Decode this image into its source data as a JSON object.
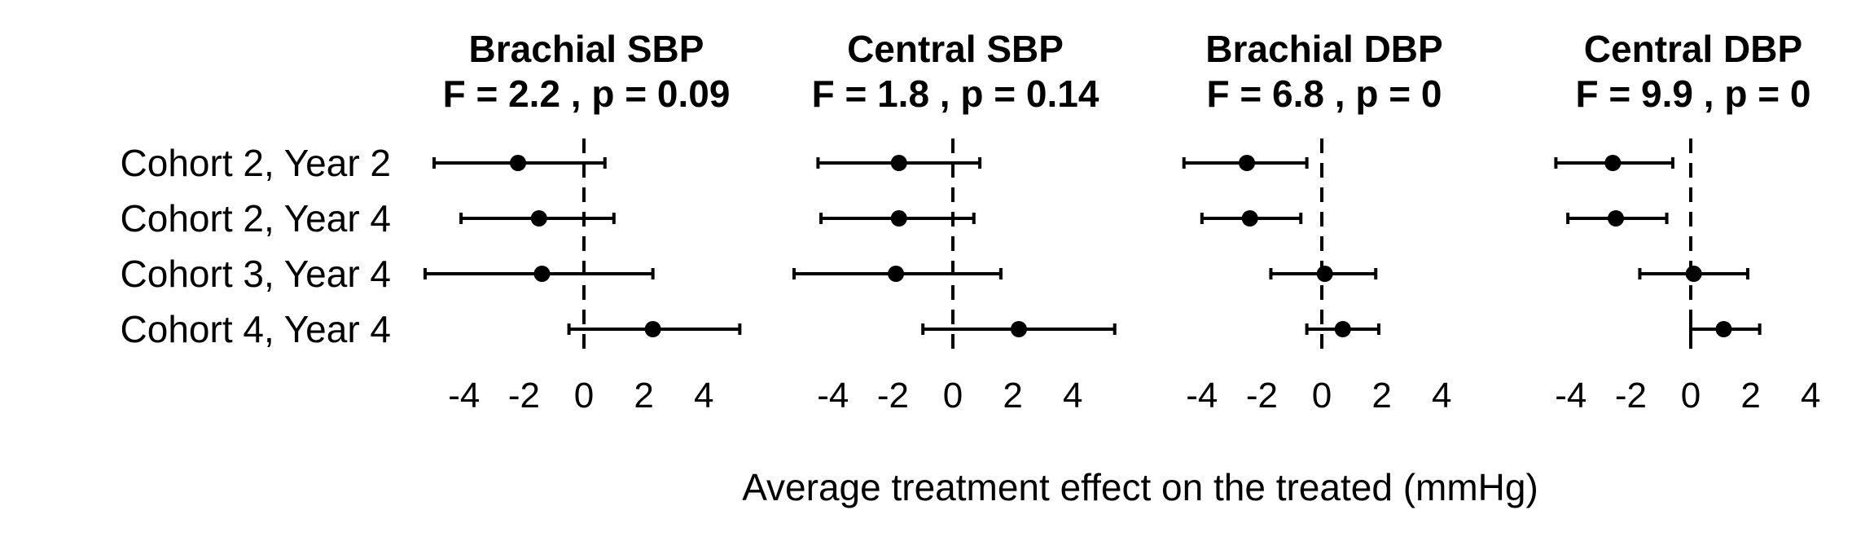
{
  "chart_data": {
    "type": "forest",
    "xlabel": "Average treatment effect on the treated (mmHg)",
    "rows": [
      "Cohort 2, Year 2",
      "Cohort 2, Year 4",
      "Cohort 3, Year 4",
      "Cohort 4, Year 4"
    ],
    "xticks": [
      -4,
      -2,
      0,
      2,
      4
    ],
    "tick_labels": [
      "-4",
      "-2",
      "0",
      "2",
      "4"
    ],
    "reference_line": 0,
    "panels": [
      {
        "title": "Brachial SBP",
        "stat": "F = 2.2 , p = 0.09",
        "estimates": [
          -2.2,
          -1.5,
          -1.4,
          2.3
        ],
        "lower": [
          -5.0,
          -4.1,
          -5.3,
          -0.5
        ],
        "upper": [
          0.7,
          1.0,
          2.3,
          5.2
        ]
      },
      {
        "title": "Central SBP",
        "stat": "F = 1.8 , p = 0.14",
        "estimates": [
          -1.8,
          -1.8,
          -1.9,
          2.2
        ],
        "lower": [
          -4.5,
          -4.4,
          -5.3,
          -1.0
        ],
        "upper": [
          0.9,
          0.7,
          1.6,
          5.4
        ]
      },
      {
        "title": "Brachial DBP",
        "stat": "F = 6.8 , p = 0",
        "estimates": [
          -2.5,
          -2.4,
          0.1,
          0.7
        ],
        "lower": [
          -4.6,
          -4.0,
          -1.7,
          -0.5
        ],
        "upper": [
          -0.5,
          -0.7,
          1.8,
          1.9
        ]
      },
      {
        "title": "Central DBP",
        "stat": "F = 9.9 , p = 0",
        "estimates": [
          -2.6,
          -2.5,
          0.1,
          1.1
        ],
        "lower": [
          -4.5,
          -4.1,
          -1.7,
          0.0
        ],
        "upper": [
          -0.6,
          -0.8,
          1.9,
          2.3
        ]
      }
    ]
  }
}
